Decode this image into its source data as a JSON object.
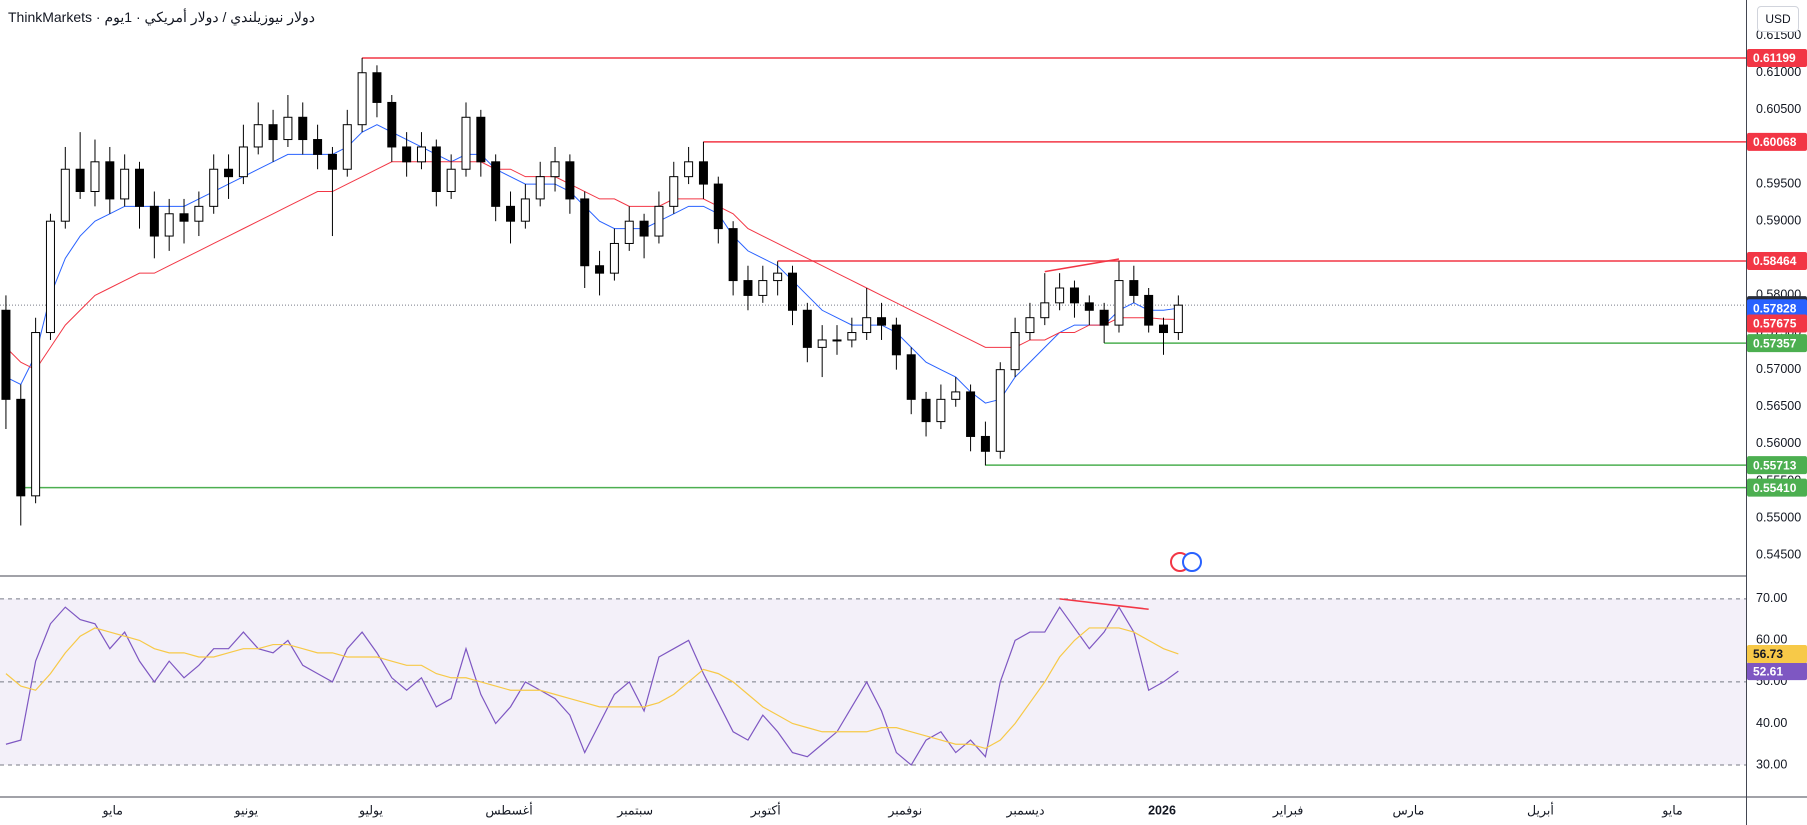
{
  "chart_data": [
    {
      "type": "candlestick",
      "broker": "ThinkMarkets",
      "title": "دولار نيوزيلندي / دولار أمريكي · 1يوم",
      "currency": "USD",
      "up_color": "#ffffff",
      "down_color": "#000000",
      "grid": false,
      "ohlc": [
        [
          0.578,
          0.58,
          0.562,
          0.566
        ],
        [
          0.566,
          0.568,
          0.549,
          0.553
        ],
        [
          0.553,
          0.577,
          0.552,
          0.575
        ],
        [
          0.575,
          0.591,
          0.574,
          0.59
        ],
        [
          0.59,
          0.6,
          0.589,
          0.597
        ],
        [
          0.597,
          0.602,
          0.593,
          0.594
        ],
        [
          0.594,
          0.601,
          0.592,
          0.598
        ],
        [
          0.598,
          0.6,
          0.591,
          0.593
        ],
        [
          0.593,
          0.599,
          0.592,
          0.597
        ],
        [
          0.597,
          0.598,
          0.589,
          0.592
        ],
        [
          0.592,
          0.594,
          0.585,
          0.588
        ],
        [
          0.588,
          0.593,
          0.586,
          0.591
        ],
        [
          0.591,
          0.593,
          0.587,
          0.59
        ],
        [
          0.59,
          0.594,
          0.588,
          0.592
        ],
        [
          0.592,
          0.599,
          0.591,
          0.597
        ],
        [
          0.597,
          0.599,
          0.593,
          0.596
        ],
        [
          0.596,
          0.603,
          0.595,
          0.6
        ],
        [
          0.6,
          0.606,
          0.599,
          0.603
        ],
        [
          0.603,
          0.605,
          0.598,
          0.601
        ],
        [
          0.601,
          0.607,
          0.6,
          0.604
        ],
        [
          0.604,
          0.606,
          0.599,
          0.601
        ],
        [
          0.601,
          0.603,
          0.597,
          0.599
        ],
        [
          0.599,
          0.6,
          0.588,
          0.597
        ],
        [
          0.597,
          0.605,
          0.596,
          0.603
        ],
        [
          0.603,
          0.612,
          0.602,
          0.61
        ],
        [
          0.61,
          0.611,
          0.604,
          0.606
        ],
        [
          0.606,
          0.607,
          0.598,
          0.6
        ],
        [
          0.6,
          0.602,
          0.596,
          0.598
        ],
        [
          0.598,
          0.602,
          0.597,
          0.6
        ],
        [
          0.6,
          0.601,
          0.592,
          0.594
        ],
        [
          0.594,
          0.599,
          0.593,
          0.597
        ],
        [
          0.597,
          0.606,
          0.596,
          0.604
        ],
        [
          0.604,
          0.605,
          0.596,
          0.598
        ],
        [
          0.598,
          0.599,
          0.59,
          0.592
        ],
        [
          0.592,
          0.594,
          0.587,
          0.59
        ],
        [
          0.59,
          0.595,
          0.589,
          0.593
        ],
        [
          0.593,
          0.598,
          0.592,
          0.596
        ],
        [
          0.596,
          0.6,
          0.594,
          0.598
        ],
        [
          0.598,
          0.599,
          0.591,
          0.593
        ],
        [
          0.593,
          0.594,
          0.581,
          0.584
        ],
        [
          0.584,
          0.586,
          0.58,
          0.583
        ],
        [
          0.583,
          0.589,
          0.582,
          0.587
        ],
        [
          0.587,
          0.592,
          0.586,
          0.59
        ],
        [
          0.59,
          0.591,
          0.585,
          0.588
        ],
        [
          0.588,
          0.594,
          0.587,
          0.592
        ],
        [
          0.592,
          0.598,
          0.591,
          0.596
        ],
        [
          0.596,
          0.6,
          0.595,
          0.598
        ],
        [
          0.598,
          0.6007,
          0.593,
          0.595
        ],
        [
          0.595,
          0.596,
          0.587,
          0.589
        ],
        [
          0.589,
          0.59,
          0.58,
          0.582
        ],
        [
          0.582,
          0.584,
          0.578,
          0.58
        ],
        [
          0.58,
          0.584,
          0.579,
          0.582
        ],
        [
          0.582,
          0.5846,
          0.58,
          0.583
        ],
        [
          0.583,
          0.584,
          0.576,
          0.578
        ],
        [
          0.578,
          0.579,
          0.571,
          0.573
        ],
        [
          0.573,
          0.576,
          0.569,
          0.574
        ],
        [
          0.574,
          0.576,
          0.572,
          0.574
        ],
        [
          0.574,
          0.577,
          0.573,
          0.575
        ],
        [
          0.575,
          0.581,
          0.574,
          0.577
        ],
        [
          0.577,
          0.579,
          0.574,
          0.576
        ],
        [
          0.576,
          0.577,
          0.57,
          0.572
        ],
        [
          0.572,
          0.573,
          0.564,
          0.566
        ],
        [
          0.566,
          0.567,
          0.561,
          0.563
        ],
        [
          0.563,
          0.568,
          0.562,
          0.566
        ],
        [
          0.566,
          0.569,
          0.565,
          0.567
        ],
        [
          0.567,
          0.568,
          0.559,
          0.561
        ],
        [
          0.561,
          0.563,
          0.5571,
          0.559
        ],
        [
          0.559,
          0.571,
          0.558,
          0.57
        ],
        [
          0.57,
          0.577,
          0.569,
          0.575
        ],
        [
          0.575,
          0.579,
          0.574,
          0.577
        ],
        [
          0.577,
          0.583,
          0.576,
          0.579
        ],
        [
          0.579,
          0.583,
          0.578,
          0.581
        ],
        [
          0.581,
          0.582,
          0.577,
          0.579
        ],
        [
          0.579,
          0.58,
          0.576,
          0.578
        ],
        [
          0.578,
          0.579,
          0.5736,
          0.576
        ],
        [
          0.576,
          0.5846,
          0.575,
          0.582
        ],
        [
          0.582,
          0.584,
          0.579,
          0.58
        ],
        [
          0.58,
          0.581,
          0.575,
          0.576
        ],
        [
          0.576,
          0.577,
          0.572,
          0.575
        ],
        [
          0.575,
          0.58,
          0.574,
          0.57869
        ]
      ],
      "lines": [
        {
          "color": "#2962ff",
          "values": [
            0.569,
            0.568,
            0.572,
            0.58,
            0.585,
            0.588,
            0.59,
            0.591,
            0.592,
            0.592,
            0.592,
            0.592,
            0.592,
            0.593,
            0.594,
            0.595,
            0.596,
            0.597,
            0.598,
            0.599,
            0.599,
            0.599,
            0.599,
            0.6,
            0.602,
            0.603,
            0.602,
            0.601,
            0.6,
            0.599,
            0.598,
            0.599,
            0.599,
            0.597,
            0.596,
            0.595,
            0.595,
            0.595,
            0.594,
            0.592,
            0.59,
            0.589,
            0.589,
            0.589,
            0.59,
            0.591,
            0.592,
            0.592,
            0.591,
            0.588,
            0.586,
            0.585,
            0.584,
            0.582,
            0.58,
            0.578,
            0.577,
            0.576,
            0.576,
            0.576,
            0.575,
            0.573,
            0.571,
            0.57,
            0.569,
            0.567,
            0.5655,
            0.566,
            0.569,
            0.571,
            0.573,
            0.575,
            0.576,
            0.576,
            0.576,
            0.578,
            0.579,
            0.578,
            0.578,
            0.57828
          ]
        },
        {
          "color": "#f23645",
          "values": [
            0.573,
            0.571,
            0.57,
            0.573,
            0.576,
            0.578,
            0.58,
            0.581,
            0.582,
            0.583,
            0.583,
            0.584,
            0.585,
            0.586,
            0.587,
            0.588,
            0.589,
            0.59,
            0.591,
            0.592,
            0.593,
            0.594,
            0.594,
            0.595,
            0.596,
            0.597,
            0.598,
            0.598,
            0.598,
            0.598,
            0.598,
            0.598,
            0.598,
            0.597,
            0.597,
            0.596,
            0.596,
            0.596,
            0.595,
            0.594,
            0.593,
            0.593,
            0.592,
            0.592,
            0.592,
            0.593,
            0.593,
            0.593,
            0.592,
            0.591,
            0.589,
            0.588,
            0.587,
            0.586,
            0.585,
            0.584,
            0.583,
            0.582,
            0.581,
            0.58,
            0.579,
            0.578,
            0.577,
            0.576,
            0.575,
            0.574,
            0.573,
            0.573,
            0.573,
            0.574,
            0.574,
            0.575,
            0.575,
            0.576,
            0.576,
            0.577,
            0.577,
            0.577,
            0.5768,
            0.57675
          ]
        }
      ],
      "levels": [
        {
          "value": 0.61199,
          "start": 24,
          "color": "#f23645"
        },
        {
          "value": 0.60068,
          "start": 47,
          "color": "#f23645"
        },
        {
          "value": 0.58464,
          "start": 52,
          "color": "#f23645"
        },
        {
          "value": 0.57357,
          "start": 74,
          "color": "#4caf50"
        },
        {
          "value": 0.55713,
          "start": 66,
          "color": "#4caf50"
        },
        {
          "value": 0.5541,
          "label": "0.55410",
          "start": 1,
          "color": "#4caf50"
        }
      ],
      "trendlines": [
        {
          "x": [
            70,
            75
          ],
          "values": [
            0.5832,
            0.5849
          ],
          "color": "#f23645"
        }
      ],
      "xlim": [
        -0.4,
        117.25
      ],
      "xticks": [
        {
          "value": 7.2,
          "label": "مايو"
        },
        {
          "value": 16.2,
          "label": "يونيو"
        },
        {
          "value": 24.6,
          "label": "يوليو"
        },
        {
          "value": 33.9,
          "label": "أغسطس"
        },
        {
          "value": 42.4,
          "label": "سبتمبر"
        },
        {
          "value": 51.2,
          "label": "أكتوبر"
        },
        {
          "value": 60.6,
          "label": "نوفمبر"
        },
        {
          "value": 68.7,
          "label": "ديسمبر"
        },
        {
          "value": 77.9,
          "label": "2026"
        },
        {
          "value": 86.4,
          "label": "فبراير"
        },
        {
          "value": 94.5,
          "label": "مارس"
        },
        {
          "value": 103.4,
          "label": "أبريل"
        },
        {
          "value": 112.3,
          "label": "مايو"
        }
      ],
      "ylim": [
        0.5422,
        0.6198
      ],
      "yticks": [
        {
          "value": 0.545,
          "label": "0.54500"
        },
        {
          "value": 0.55,
          "label": "0.55000"
        },
        {
          "value": 0.555,
          "label": "0.55500"
        },
        {
          "value": 0.56,
          "label": "0.56000"
        },
        {
          "value": 0.565,
          "label": "0.56500"
        },
        {
          "value": 0.57,
          "label": "0.57000"
        },
        {
          "value": 0.575,
          "label": "0.57500"
        },
        {
          "value": 0.58,
          "label": "0.58000"
        },
        {
          "value": 0.585,
          "label": "0.58500"
        },
        {
          "value": 0.59,
          "label": "0.59000"
        },
        {
          "value": 0.595,
          "label": "0.59500"
        },
        {
          "value": 0.6,
          "label": "0.60000"
        },
        {
          "value": 0.605,
          "label": "0.60500"
        },
        {
          "value": 0.61,
          "label": "0.61000"
        },
        {
          "value": 0.615,
          "label": "0.61500"
        }
      ]
    },
    {
      "type": "line",
      "grid": false,
      "series": [
        {
          "color": "#7e57c2",
          "values": [
            35,
            36,
            55,
            64,
            68,
            65,
            64,
            58,
            62,
            55,
            50,
            55,
            51,
            54,
            58,
            58,
            62,
            58,
            57,
            60,
            54,
            52,
            50,
            58,
            62,
            57,
            51,
            48,
            51,
            44,
            46,
            58,
            47,
            40,
            44,
            50,
            48,
            46,
            42,
            33,
            40,
            47,
            50,
            43,
            56,
            58,
            60,
            52,
            45,
            38,
            36,
            42,
            38,
            33,
            32,
            35,
            38,
            44,
            50,
            43,
            33,
            30,
            36,
            38,
            33,
            36,
            32,
            50,
            60,
            62,
            62,
            68,
            63,
            58,
            62,
            68,
            62,
            48,
            50,
            52.61
          ]
        },
        {
          "color": "#f7c948",
          "values": [
            52,
            49,
            48,
            52,
            57,
            61,
            63,
            62,
            61,
            60,
            58,
            57,
            57,
            56,
            56,
            57,
            58,
            58,
            59,
            59,
            58,
            57,
            57,
            56,
            56,
            56,
            55,
            54,
            54,
            52,
            51,
            51,
            50,
            49,
            48,
            48,
            48,
            47,
            46,
            45,
            44,
            44,
            44,
            44,
            45,
            47,
            50,
            53,
            52,
            50,
            47,
            44,
            42,
            40,
            39,
            38,
            38,
            38,
            38,
            39,
            39,
            38,
            37,
            36,
            35,
            35,
            34,
            36,
            40,
            45,
            50,
            56,
            60,
            63,
            63,
            63,
            62,
            60,
            58,
            56.73
          ]
        }
      ],
      "levels": [
        30,
        50,
        70
      ],
      "band_color": "#7e57c2",
      "trendlines": [
        {
          "x": [
            71,
            77
          ],
          "values": [
            70,
            67.5
          ],
          "color": "#f23645"
        }
      ],
      "ylim": [
        22.3,
        75.5
      ],
      "yticks": [
        {
          "value": 30,
          "label": "30.00"
        },
        {
          "value": 40,
          "label": "40.00"
        },
        {
          "value": 50,
          "label": "50.00"
        },
        {
          "value": 60,
          "label": "60.00"
        },
        {
          "value": 70,
          "label": "70.00"
        }
      ]
    }
  ]
}
